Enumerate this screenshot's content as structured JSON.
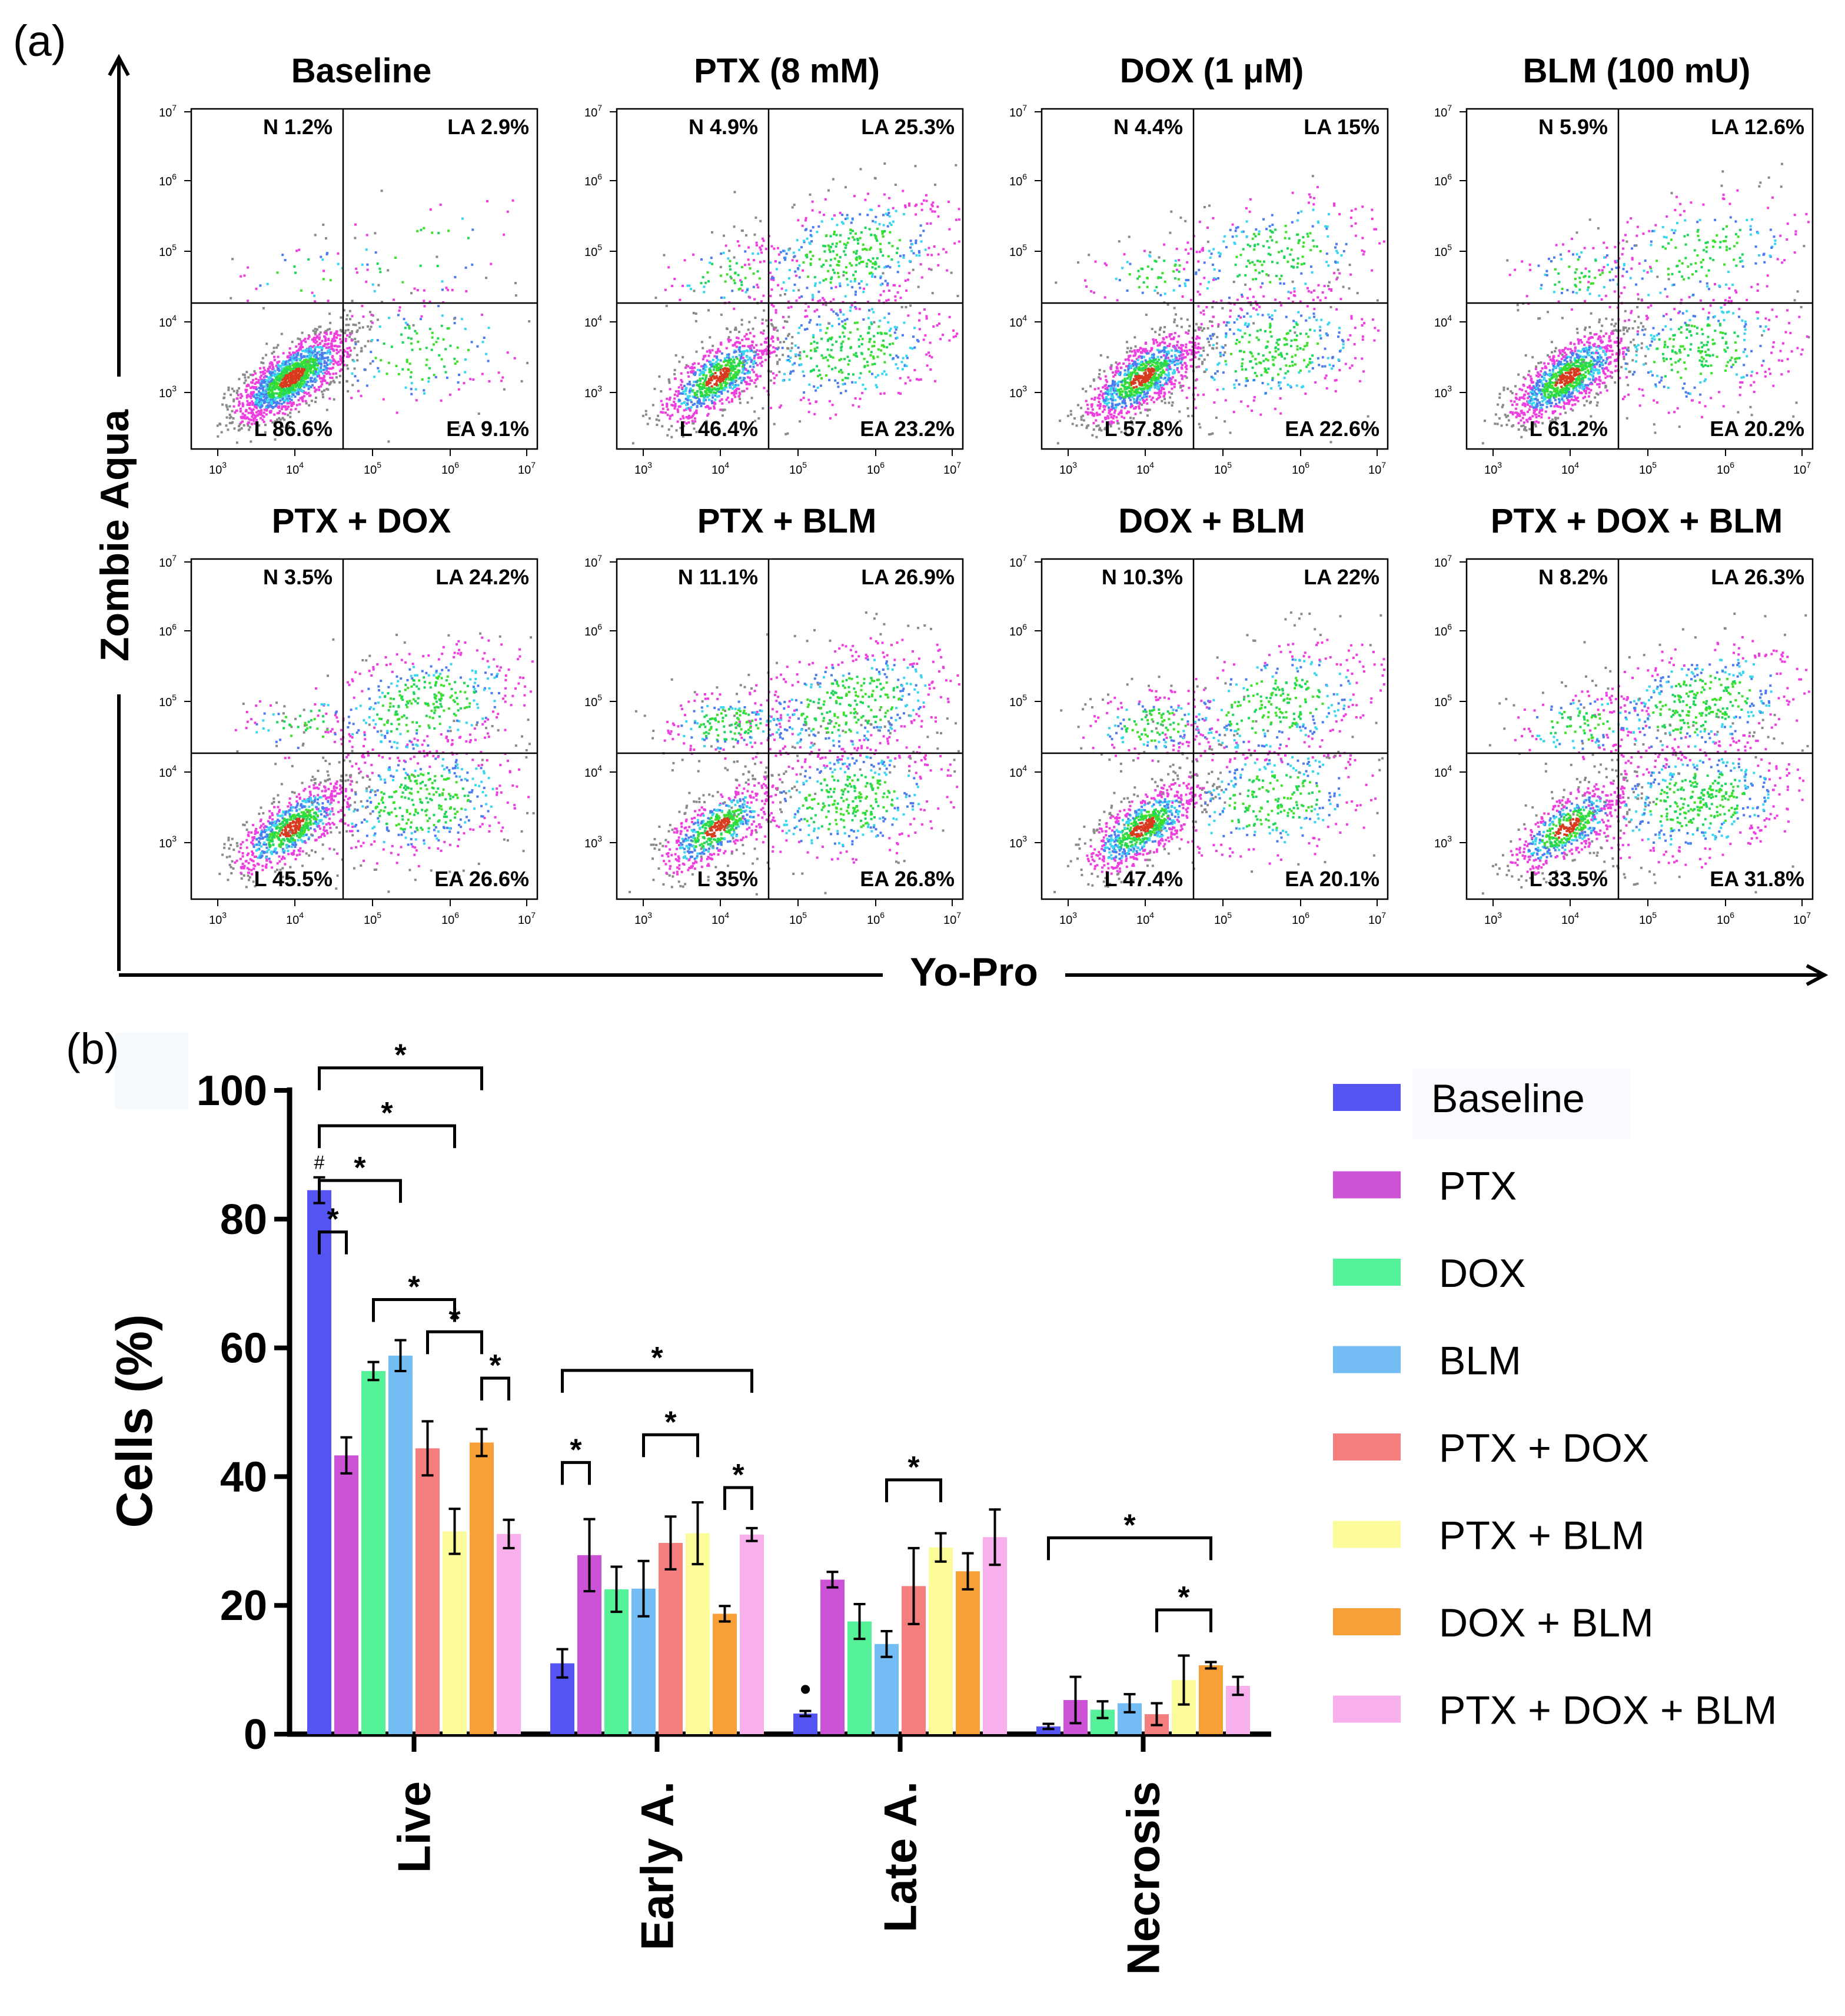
{
  "panel_a": {
    "label": "(a)",
    "y_axis_label": "Zombie Aqua",
    "x_axis_label": "Yo-Pro",
    "tick_exponents": [
      "3",
      "4",
      "5",
      "6",
      "7"
    ],
    "plots": [
      {
        "title": "Baseline",
        "N": "N 1.2%",
        "LA": "LA 2.9%",
        "L": "L 86.6%",
        "EA": "EA 9.1%",
        "ea": 9.1,
        "la": 2.9,
        "n": 1.2
      },
      {
        "title": "PTX (8 mM)",
        "N": "N 4.9%",
        "LA": "LA 25.3%",
        "L": "L 46.4%",
        "EA": "EA 23.2%",
        "ea": 23.2,
        "la": 25.3,
        "n": 4.9
      },
      {
        "title": "DOX (1 μM)",
        "N": "N 4.4%",
        "LA": "LA 15%",
        "L": "L 57.8%",
        "EA": "EA 22.6%",
        "ea": 22.6,
        "la": 15,
        "n": 4.4
      },
      {
        "title": "BLM (100 mU)",
        "N": "N 5.9%",
        "LA": "LA 12.6%",
        "L": "L 61.2%",
        "EA": "EA 20.2%",
        "ea": 20.2,
        "la": 12.6,
        "n": 5.9
      },
      {
        "title": "PTX + DOX",
        "N": "N 3.5%",
        "LA": "LA 24.2%",
        "L": "L 45.5%",
        "EA": "EA 26.6%",
        "ea": 26.6,
        "la": 24.2,
        "n": 3.5
      },
      {
        "title": "PTX + BLM",
        "N": "N 11.1%",
        "LA": "LA 26.9%",
        "L": "L 35%",
        "EA": "EA 26.8%",
        "ea": 26.8,
        "la": 26.9,
        "n": 11.1
      },
      {
        "title": "DOX + BLM",
        "N": "N 10.3%",
        "LA": "LA 22%",
        "L": "L 47.4%",
        "EA": "EA 20.1%",
        "ea": 20.1,
        "la": 22,
        "n": 10.3
      },
      {
        "title": "PTX + DOX + BLM",
        "N": "N 8.2%",
        "LA": "LA 26.3%",
        "L": "L 33.5%",
        "EA": "EA 31.8%",
        "ea": 31.8,
        "la": 26.3,
        "n": 8.2
      }
    ]
  },
  "chart_data": {
    "type": "bar",
    "panel_label": "(b)",
    "ylabel": "Cells (%)",
    "ylim": [
      0,
      100
    ],
    "yticks": [
      "0",
      "20",
      "40",
      "60",
      "80",
      "100"
    ],
    "categories": [
      "Live",
      "Early A.",
      "Late A.",
      "Necrosis"
    ],
    "series": [
      {
        "name": "Baseline",
        "color": "#5454f2",
        "values": [
          84.5,
          11,
          3.2,
          1.2
        ],
        "errors": [
          2,
          2.2,
          0.4,
          0.4
        ]
      },
      {
        "name": "PTX",
        "color": "#cc52d6",
        "values": [
          43.3,
          27.8,
          24,
          5.3
        ],
        "errors": [
          2.8,
          5.6,
          1.2,
          3.6
        ]
      },
      {
        "name": "DOX",
        "color": "#56f29a",
        "values": [
          56.4,
          22.5,
          17.5,
          3.8
        ],
        "errors": [
          1.4,
          3.5,
          2.7,
          1.3
        ]
      },
      {
        "name": "BLM",
        "color": "#74bdf4",
        "values": [
          58.8,
          22.6,
          14,
          4.8
        ],
        "errors": [
          2.4,
          4.3,
          2,
          1.4
        ]
      },
      {
        "name": "PTX + DOX",
        "color": "#f57f7f",
        "values": [
          44.4,
          29.7,
          23,
          3.1
        ],
        "errors": [
          4.2,
          4.1,
          5.9,
          1.7
        ]
      },
      {
        "name": "PTX + BLM",
        "color": "#fcfc9a",
        "values": [
          31.5,
          31.2,
          29,
          8.4
        ],
        "errors": [
          3.5,
          4.8,
          2.2,
          3.8
        ]
      },
      {
        "name": "DOX + BLM",
        "color": "#f8a038",
        "values": [
          45.3,
          18.7,
          25.3,
          10.7
        ],
        "errors": [
          2.1,
          1.2,
          2.8,
          0.5
        ]
      },
      {
        "name": "PTX + DOX + BLM",
        "color": "#f7b0ec",
        "values": [
          31.1,
          31,
          30.6,
          7.5
        ],
        "errors": [
          2.2,
          1,
          4.3,
          1.4
        ]
      }
    ],
    "annotations": [
      {
        "text": "#",
        "category": 0,
        "series": 0
      },
      {
        "text": "•",
        "category": 2,
        "series": 0
      }
    ],
    "significance": [
      {
        "category": 0,
        "from": 0,
        "to": 1,
        "level": 78,
        "text": "*"
      },
      {
        "category": 0,
        "from": 0,
        "to": 3,
        "level": 86,
        "text": "*"
      },
      {
        "category": 0,
        "from": 0,
        "to": 5,
        "level": 94.5,
        "text": "*"
      },
      {
        "category": 0,
        "from": 0,
        "to": 6,
        "level": 103.5,
        "text": "*"
      },
      {
        "category": 0,
        "from": 2,
        "to": 5,
        "level": 67.5,
        "text": "*"
      },
      {
        "category": 0,
        "from": 4,
        "to": 6,
        "level": 62.5,
        "text": "*"
      },
      {
        "category": 0,
        "from": 6,
        "to": 7,
        "level": 55.3,
        "text": "*"
      },
      {
        "category": 1,
        "from": 0,
        "to": 1,
        "level": 42.2,
        "text": "*"
      },
      {
        "category": 1,
        "from": 3,
        "to": 5,
        "level": 46.5,
        "text": "*"
      },
      {
        "category": 1,
        "from": 0,
        "to": 7,
        "level": 56.5,
        "text": "*"
      },
      {
        "category": 1,
        "from": 6,
        "to": 7,
        "level": 38.3,
        "text": "*"
      },
      {
        "category": 2,
        "from": 3,
        "to": 5,
        "level": 39.5,
        "text": "*"
      },
      {
        "category": 3,
        "from": 0,
        "to": 6,
        "level": 30.5,
        "text": "*"
      },
      {
        "category": 3,
        "from": 4,
        "to": 6,
        "level": 19.3,
        "text": "*"
      }
    ]
  }
}
